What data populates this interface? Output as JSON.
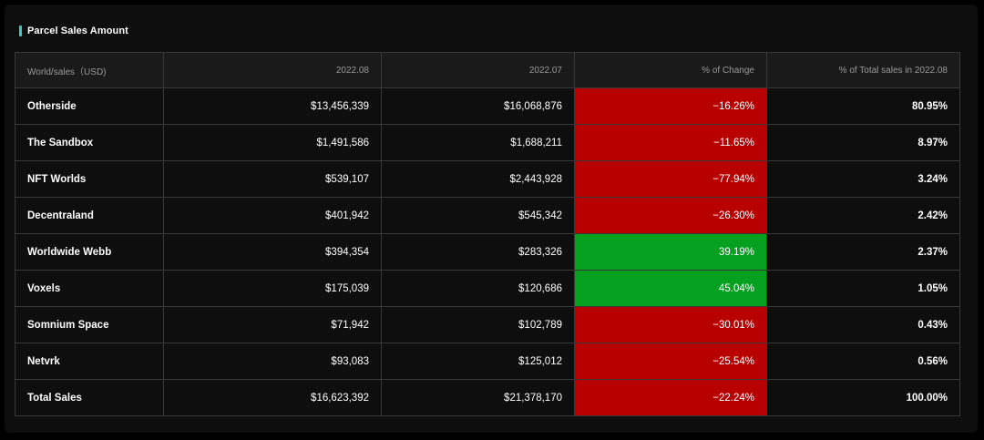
{
  "header": {
    "title": "Parcel Sales Amount"
  },
  "colors": {
    "accent": "#2fd3c3",
    "negative": "#b80000",
    "positive": "#05a01f"
  },
  "table": {
    "columns": [
      "World/sales（USD)",
      "2022.08",
      "2022.07",
      "% of Change",
      "% of Total sales in 2022.08"
    ],
    "rows": [
      {
        "world": "Otherside",
        "aug": "$13,456,339",
        "jul": "$16,068,876",
        "change": "−16.26%",
        "trend": "negative",
        "share": "80.95%"
      },
      {
        "world": "The Sandbox",
        "aug": "$1,491,586",
        "jul": "$1,688,211",
        "change": "−11.65%",
        "trend": "negative",
        "share": "8.97%"
      },
      {
        "world": "NFT Worlds",
        "aug": "$539,107",
        "jul": "$2,443,928",
        "change": "−77.94%",
        "trend": "negative",
        "share": "3.24%"
      },
      {
        "world": "Decentraland",
        "aug": "$401,942",
        "jul": "$545,342",
        "change": "−26.30%",
        "trend": "negative",
        "share": "2.42%"
      },
      {
        "world": "Worldwide Webb",
        "aug": "$394,354",
        "jul": "$283,326",
        "change": "39.19%",
        "trend": "positive",
        "share": "2.37%"
      },
      {
        "world": "Voxels",
        "aug": "$175,039",
        "jul": "$120,686",
        "change": "45.04%",
        "trend": "positive",
        "share": "1.05%"
      },
      {
        "world": "Somnium Space",
        "aug": "$71,942",
        "jul": "$102,789",
        "change": "−30.01%",
        "trend": "negative",
        "share": "0.43%"
      },
      {
        "world": "Netvrk",
        "aug": "$93,083",
        "jul": "$125,012",
        "change": "−25.54%",
        "trend": "negative",
        "share": "0.56%"
      },
      {
        "world": "Total Sales",
        "aug": "$16,623,392",
        "jul": "$21,378,170",
        "change": "−22.24%",
        "trend": "negative",
        "share": "100.00%"
      }
    ]
  }
}
